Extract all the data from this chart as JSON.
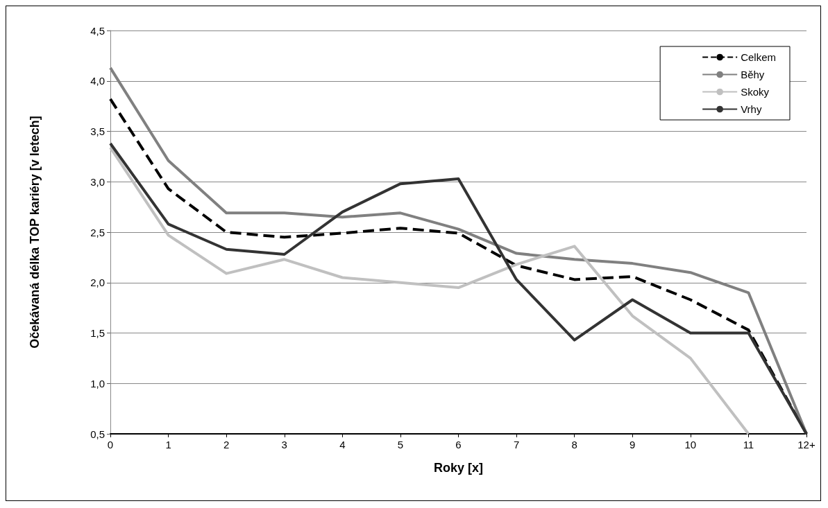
{
  "chart_data": {
    "type": "line",
    "xlabel": "Roky [x]",
    "ylabel": "Očekávaná délka TOP kariéry [v letech]",
    "categories": [
      "0",
      "1",
      "2",
      "3",
      "4",
      "5",
      "6",
      "7",
      "8",
      "9",
      "10",
      "11",
      "12+"
    ],
    "ylim": [
      0.5,
      4.5
    ],
    "yticks": [
      {
        "value": 0.5,
        "label": "0,5"
      },
      {
        "value": 1,
        "label": "1,0"
      },
      {
        "value": 1.5,
        "label": "1,5"
      },
      {
        "value": 2,
        "label": "2,0"
      },
      {
        "value": 2.5,
        "label": "2,5"
      },
      {
        "value": 3,
        "label": "3,0"
      },
      {
        "value": 3.5,
        "label": "3,5"
      },
      {
        "value": 4,
        "label": "4,0"
      },
      {
        "value": 4.5,
        "label": "4,5"
      }
    ],
    "grid": "y",
    "legend": "top right",
    "marker": "none",
    "series": [
      {
        "name": "Celkem",
        "color": "#000000",
        "line_style": "dashed",
        "values": [
          3.82,
          2.93,
          2.5,
          2.45,
          2.49,
          2.54,
          2.49,
          2.17,
          2.03,
          2.06,
          1.83,
          1.53,
          0.5
        ]
      },
      {
        "name": "Běhy",
        "color": "#808080",
        "line_style": "solid",
        "values": [
          4.13,
          3.21,
          2.69,
          2.69,
          2.65,
          2.69,
          2.53,
          2.29,
          2.23,
          2.19,
          2.1,
          1.9,
          0.5
        ]
      },
      {
        "name": "Skoky",
        "color": "#c0c0c0",
        "line_style": "solid",
        "values": [
          3.34,
          2.47,
          2.09,
          2.23,
          2.05,
          2.0,
          1.95,
          2.18,
          2.36,
          1.67,
          1.25,
          0.5,
          null
        ]
      },
      {
        "name": "Vrhy",
        "color": "#333333",
        "line_style": "solid",
        "values": [
          3.38,
          2.58,
          2.33,
          2.28,
          2.7,
          2.98,
          3.03,
          2.03,
          1.43,
          1.83,
          1.5,
          1.5,
          0.5
        ]
      }
    ]
  }
}
